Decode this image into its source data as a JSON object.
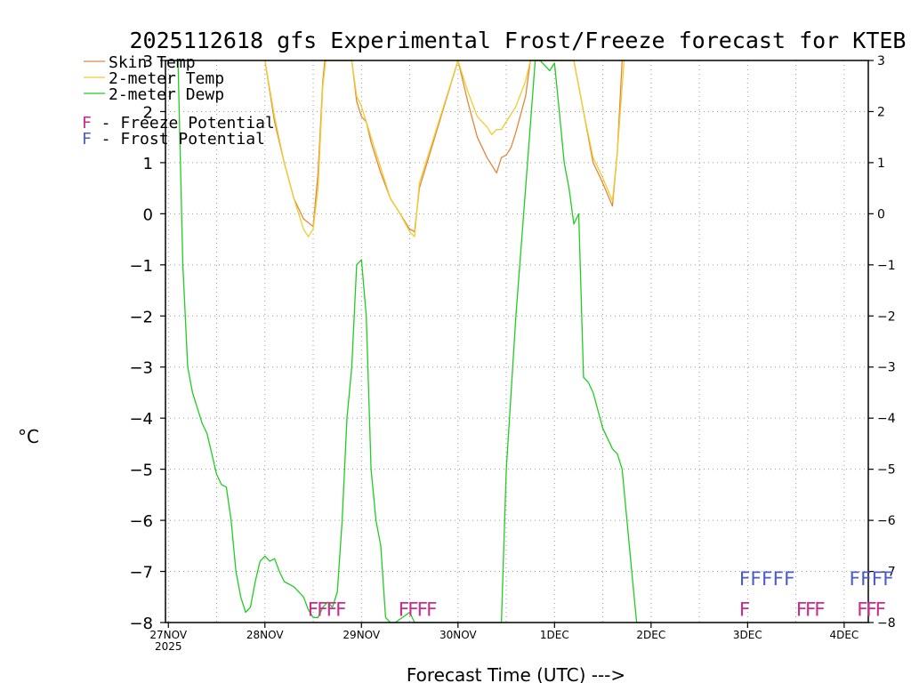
{
  "chart_data": {
    "type": "line",
    "title": "2025112618 gfs Experimental Frost/Freeze forecast for KTEB",
    "ylabel": "°C",
    "xlabel": "Forecast Time (UTC) --->",
    "ylim": [
      -8,
      3
    ],
    "xlim": [
      -0.03,
      7.25
    ],
    "yticks": [
      3,
      2,
      1,
      0,
      -1,
      -2,
      -3,
      -4,
      -5,
      -6,
      -7,
      -8
    ],
    "yticks_right": [
      3,
      2,
      1,
      0,
      -1,
      -2,
      -3,
      -4,
      -5,
      -6,
      -7,
      -8
    ],
    "xticks": [
      {
        "x": 0,
        "label": "27NOV",
        "sublabel": "2025"
      },
      {
        "x": 1,
        "label": "28NOV",
        "sublabel": ""
      },
      {
        "x": 2,
        "label": "29NOV",
        "sublabel": ""
      },
      {
        "x": 3,
        "label": "30NOV",
        "sublabel": ""
      },
      {
        "x": 4,
        "label": "1DEC",
        "sublabel": ""
      },
      {
        "x": 5,
        "label": "2DEC",
        "sublabel": ""
      },
      {
        "x": 6,
        "label": "3DEC",
        "sublabel": ""
      },
      {
        "x": 7,
        "label": "4DEC",
        "sublabel": ""
      }
    ],
    "grid": true,
    "legend_position": "top-left",
    "series": [
      {
        "name": "Skin Temp",
        "color": "#e0883a",
        "x": [
          1.0,
          1.1,
          1.2,
          1.3,
          1.4,
          1.5,
          1.55,
          1.6,
          1.62,
          1.9,
          1.95,
          2.0,
          2.05,
          2.1,
          2.2,
          2.3,
          2.4,
          2.5,
          2.55,
          2.6,
          3.0,
          3.1,
          3.2,
          3.3,
          3.4,
          3.45,
          3.5,
          3.55,
          3.6,
          3.7,
          3.75,
          4.2,
          4.3,
          4.4,
          4.5,
          4.6,
          4.65,
          4.7
        ],
        "values": [
          3.0,
          1.8,
          1.0,
          0.3,
          -0.1,
          -0.25,
          0.8,
          2.6,
          3.0,
          3.0,
          2.2,
          1.9,
          1.8,
          1.4,
          0.8,
          0.3,
          0.0,
          -0.3,
          -0.35,
          0.5,
          3.0,
          2.2,
          1.5,
          1.1,
          0.8,
          1.1,
          1.15,
          1.3,
          1.6,
          2.3,
          3.0,
          3.0,
          2.0,
          1.0,
          0.6,
          0.15,
          1.2,
          3.0
        ]
      },
      {
        "name": "2-meter Temp",
        "color": "#f0cc30",
        "x": [
          1.0,
          1.1,
          1.2,
          1.3,
          1.4,
          1.45,
          1.5,
          1.55,
          1.6,
          1.63,
          1.9,
          1.95,
          2.0,
          2.1,
          2.2,
          2.3,
          2.4,
          2.5,
          2.55,
          2.6,
          3.0,
          3.1,
          3.2,
          3.3,
          3.35,
          3.4,
          3.45,
          3.5,
          3.6,
          3.7,
          3.75,
          4.2,
          4.3,
          4.4,
          4.5,
          4.6,
          4.65,
          4.72
        ],
        "values": [
          3.0,
          1.9,
          1.0,
          0.3,
          -0.3,
          -0.45,
          -0.3,
          0.5,
          2.5,
          3.0,
          3.0,
          2.3,
          2.1,
          1.5,
          0.9,
          0.3,
          0.0,
          -0.35,
          -0.45,
          0.6,
          3.0,
          2.4,
          1.9,
          1.7,
          1.55,
          1.65,
          1.65,
          1.8,
          2.1,
          2.6,
          3.0,
          3.0,
          2.0,
          1.1,
          0.7,
          0.25,
          1.2,
          3.0
        ]
      },
      {
        "name": "2-meter Dewp",
        "color": "#22cc22",
        "x": [
          0.1,
          0.15,
          0.2,
          0.25,
          0.3,
          0.35,
          0.4,
          0.45,
          0.5,
          0.55,
          0.6,
          0.65,
          0.7,
          0.75,
          0.8,
          0.85,
          0.9,
          0.95,
          1.0,
          1.05,
          1.1,
          1.15,
          1.2,
          1.3,
          1.4,
          1.45,
          1.5,
          1.55,
          1.6,
          1.65,
          1.7,
          1.75,
          1.8,
          1.85,
          1.9,
          1.95,
          2.0,
          2.05,
          2.1,
          2.15,
          2.2,
          2.25,
          2.3,
          2.35,
          2.5,
          2.55,
          2.6,
          2.65,
          3.45,
          3.5,
          3.6,
          3.7,
          3.8,
          3.85,
          3.9,
          3.95,
          4.0,
          4.05,
          4.1,
          4.15,
          4.2,
          4.25,
          4.3,
          4.35,
          4.4,
          4.5,
          4.6,
          4.65,
          4.7,
          4.8,
          4.85,
          4.9,
          5.0
        ],
        "values": [
          3.0,
          -1.0,
          -3.0,
          -3.5,
          -3.8,
          -4.1,
          -4.3,
          -4.7,
          -5.1,
          -5.3,
          -5.35,
          -6.0,
          -7.0,
          -7.5,
          -7.8,
          -7.7,
          -7.2,
          -6.8,
          -6.7,
          -6.8,
          -6.75,
          -7.0,
          -7.2,
          -7.3,
          -7.5,
          -7.75,
          -7.9,
          -7.9,
          -7.7,
          -7.6,
          -7.7,
          -7.4,
          -6.0,
          -4.0,
          -3.0,
          -1.0,
          -0.9,
          -2.0,
          -5.0,
          -6.0,
          -6.5,
          -7.9,
          -8.0,
          -8.0,
          -7.8,
          -8.0,
          -8.0,
          -8.0,
          -8.0,
          -5.0,
          -2.0,
          0.5,
          3.0,
          3.0,
          2.9,
          2.8,
          2.95,
          2.0,
          1.0,
          0.5,
          -0.2,
          0.0,
          -3.2,
          -3.3,
          -3.5,
          -4.2,
          -4.6,
          -4.7,
          -5.0,
          -7.0,
          -8.0,
          -8.0,
          -8.0
        ]
      }
    ],
    "legend": {
      "skin_label": "Skin Temp",
      "t2m_label": "2-meter Temp",
      "dewp_label": "2-meter Dewp",
      "freeze_letter": "F",
      "freeze_text": " - Freeze Potential",
      "frost_letter": "F",
      "frost_text": " - Frost Potential"
    },
    "freeze_flags": [
      {
        "x": 1.44,
        "text": "FFFF"
      },
      {
        "x": 2.38,
        "text": "FFFF"
      },
      {
        "x": 5.91,
        "text": "F"
      },
      {
        "x": 6.5,
        "text": "FFF"
      },
      {
        "x": 7.13,
        "text": "FFF"
      }
    ],
    "frost_flags": [
      {
        "x": 5.91,
        "text": "FFFFF"
      },
      {
        "x": 7.05,
        "text": "FFFF"
      }
    ],
    "colors": {
      "freeze": "#cc2a8c",
      "frost": "#4a5cc8",
      "grid": "#9a9a9a"
    }
  }
}
